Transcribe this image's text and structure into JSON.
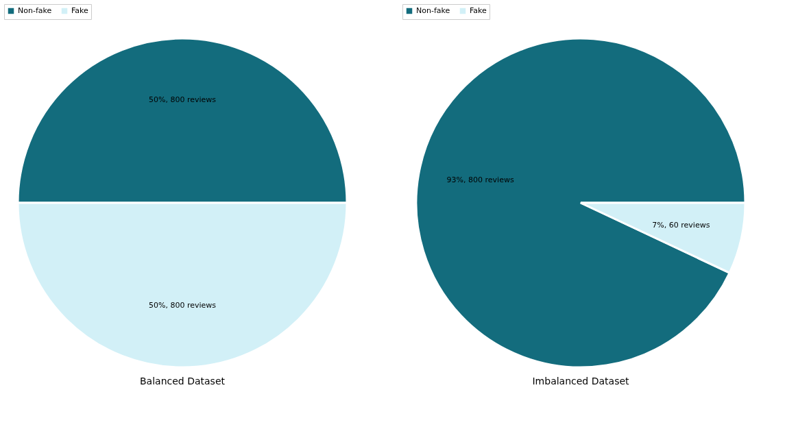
{
  "chart_data": [
    {
      "type": "pie",
      "title": "Balanced Dataset",
      "categories": [
        "Non-fake",
        "Fake"
      ],
      "values": [
        50,
        50
      ],
      "colors": [
        "#136c7d",
        "#d2f0f7"
      ],
      "value_labels": [
        "50%, 800 reviews",
        "50%, 800 reviews"
      ],
      "legend": "top"
    },
    {
      "type": "pie",
      "title": "Imbalanced Dataset",
      "categories": [
        "Non-fake",
        "Fake"
      ],
      "values": [
        93,
        7
      ],
      "colors": [
        "#136c7d",
        "#d2f0f7"
      ],
      "value_labels": [
        "93%, 800 reviews",
        "7%, 60 reviews"
      ],
      "legend": "top"
    }
  ]
}
